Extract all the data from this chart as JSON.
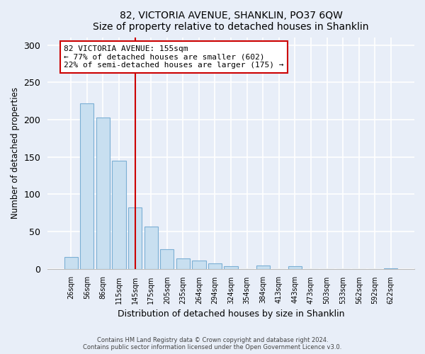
{
  "title": "82, VICTORIA AVENUE, SHANKLIN, PO37 6QW",
  "subtitle": "Size of property relative to detached houses in Shanklin",
  "xlabel": "Distribution of detached houses by size in Shanklin",
  "ylabel": "Number of detached properties",
  "bar_labels": [
    "26sqm",
    "56sqm",
    "86sqm",
    "115sqm",
    "145sqm",
    "175sqm",
    "205sqm",
    "235sqm",
    "264sqm",
    "294sqm",
    "324sqm",
    "354sqm",
    "384sqm",
    "413sqm",
    "443sqm",
    "473sqm",
    "503sqm",
    "533sqm",
    "562sqm",
    "592sqm",
    "622sqm"
  ],
  "bar_values": [
    16,
    222,
    203,
    145,
    82,
    57,
    26,
    14,
    11,
    7,
    3,
    0,
    4,
    0,
    3,
    0,
    0,
    0,
    0,
    0,
    1
  ],
  "bar_color": "#c8dff0",
  "bar_edge_color": "#7bafd4",
  "vline_x": 4.0,
  "vline_color": "#cc0000",
  "annotation_text": "82 VICTORIA AVENUE: 155sqm\n← 77% of detached houses are smaller (602)\n22% of semi-detached houses are larger (175) →",
  "annotation_box_color": "#ffffff",
  "annotation_box_edge_color": "#cc0000",
  "ylim": [
    0,
    310
  ],
  "yticks": [
    0,
    50,
    100,
    150,
    200,
    250,
    300
  ],
  "footer_line1": "Contains HM Land Registry data © Crown copyright and database right 2024.",
  "footer_line2": "Contains public sector information licensed under the Open Government Licence v3.0.",
  "bg_color": "#e8eef8",
  "plot_bg_color": "#e8eef8",
  "grid_color": "#ffffff"
}
